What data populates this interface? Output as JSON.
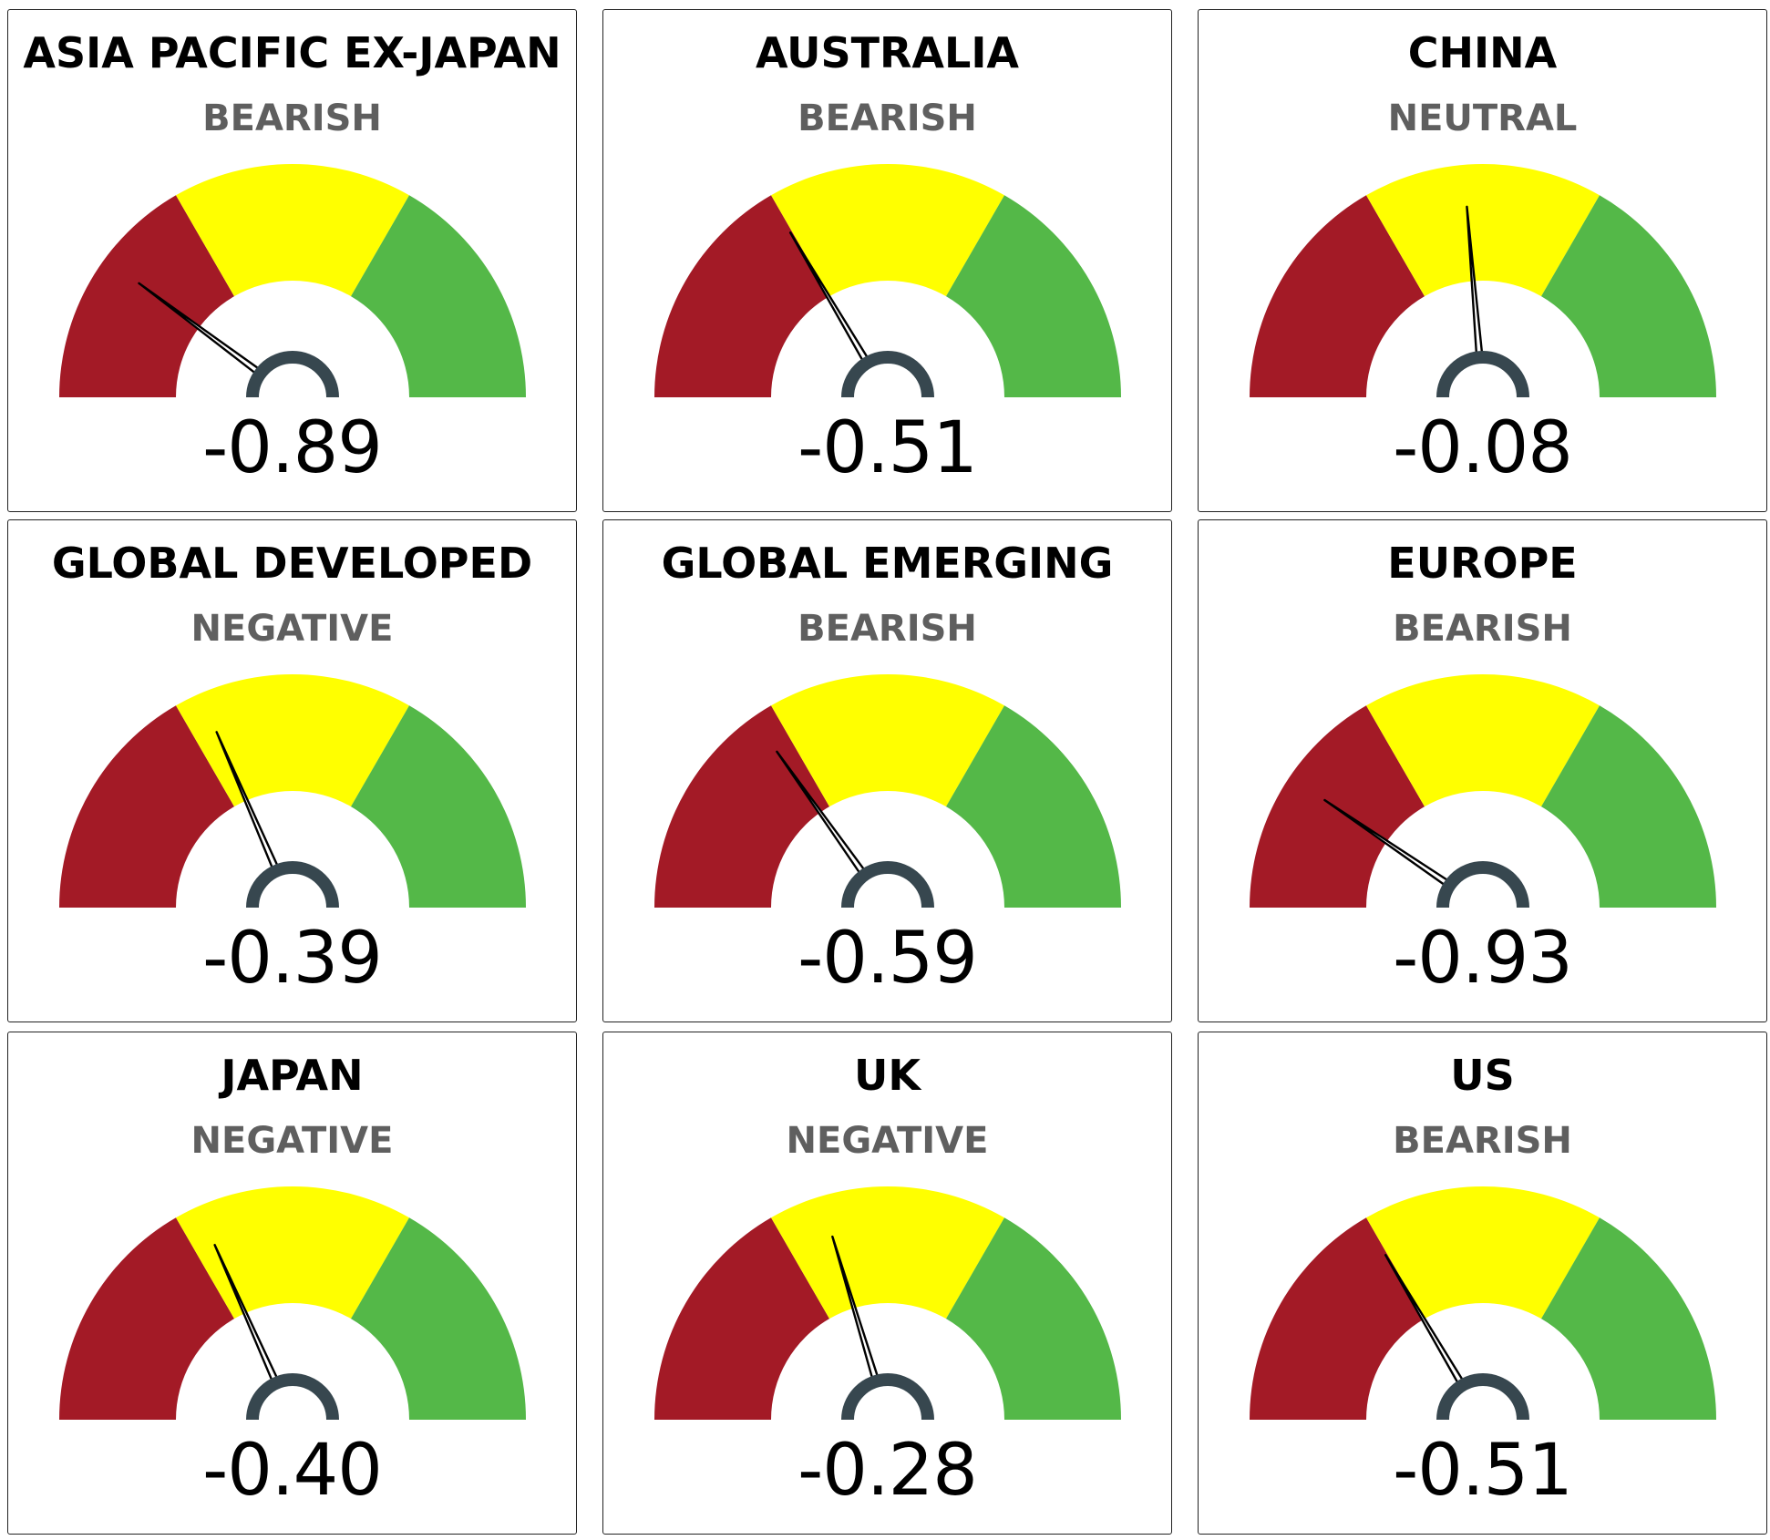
{
  "colors": {
    "bearish_zone": "#a31a26",
    "neutral_zone": "#ffff00",
    "bullish_zone": "#54b848",
    "hub": "#37474f",
    "needle": "#000000",
    "sentiment_text": "#5f5f5f"
  },
  "chart_data": [
    {
      "type": "gauge",
      "title": "ASIA PACIFIC EX-JAPAN",
      "label": "BEARISH",
      "value": -0.89,
      "display": "-0.89",
      "range": [
        -1.5,
        1.5
      ],
      "bands": [
        -1.5,
        -0.5,
        0.5,
        1.5
      ]
    },
    {
      "type": "gauge",
      "title": "AUSTRALIA",
      "label": "BEARISH",
      "value": -0.51,
      "display": "-0.51",
      "range": [
        -1.5,
        1.5
      ],
      "bands": [
        -1.5,
        -0.5,
        0.5,
        1.5
      ]
    },
    {
      "type": "gauge",
      "title": "CHINA",
      "label": "NEUTRAL",
      "value": -0.08,
      "display": "-0.08",
      "range": [
        -1.5,
        1.5
      ],
      "bands": [
        -1.5,
        -0.5,
        0.5,
        1.5
      ]
    },
    {
      "type": "gauge",
      "title": "GLOBAL DEVELOPED",
      "label": "NEGATIVE",
      "value": -0.39,
      "display": "-0.39",
      "range": [
        -1.5,
        1.5
      ],
      "bands": [
        -1.5,
        -0.5,
        0.5,
        1.5
      ]
    },
    {
      "type": "gauge",
      "title": "GLOBAL EMERGING",
      "label": "BEARISH",
      "value": -0.59,
      "display": "-0.59",
      "range": [
        -1.5,
        1.5
      ],
      "bands": [
        -1.5,
        -0.5,
        0.5,
        1.5
      ]
    },
    {
      "type": "gauge",
      "title": "EUROPE",
      "label": "BEARISH",
      "value": -0.93,
      "display": "-0.93",
      "range": [
        -1.5,
        1.5
      ],
      "bands": [
        -1.5,
        -0.5,
        0.5,
        1.5
      ]
    },
    {
      "type": "gauge",
      "title": "JAPAN",
      "label": "NEGATIVE",
      "value": -0.4,
      "display": "-0.40",
      "range": [
        -1.5,
        1.5
      ],
      "bands": [
        -1.5,
        -0.5,
        0.5,
        1.5
      ]
    },
    {
      "type": "gauge",
      "title": "UK",
      "label": "NEGATIVE",
      "value": -0.28,
      "display": "-0.28",
      "range": [
        -1.5,
        1.5
      ],
      "bands": [
        -1.5,
        -0.5,
        0.5,
        1.5
      ]
    },
    {
      "type": "gauge",
      "title": "US",
      "label": "BEARISH",
      "value": -0.51,
      "display": "-0.51",
      "range": [
        -1.5,
        1.5
      ],
      "bands": [
        -1.5,
        -0.5,
        0.5,
        1.5
      ]
    }
  ]
}
